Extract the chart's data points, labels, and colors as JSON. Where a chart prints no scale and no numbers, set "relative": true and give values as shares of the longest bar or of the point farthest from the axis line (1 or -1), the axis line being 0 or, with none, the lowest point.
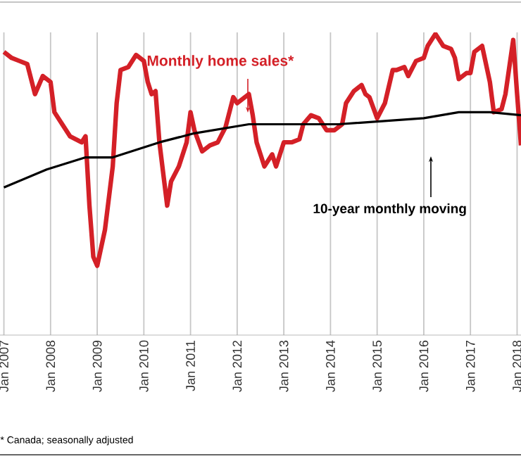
{
  "chart_data": {
    "type": "line",
    "relative": true,
    "grid": "x",
    "tick_labels": "x",
    "line_style": "solid",
    "marker": "none",
    "xlim": [
      "2006-12",
      "2018-02"
    ],
    "xticks": [
      {
        "value": "2007-01",
        "label": "Jan 2007"
      },
      {
        "value": "2008-01",
        "label": "Jan 2008"
      },
      {
        "value": "2009-01",
        "label": "Jan 2009"
      },
      {
        "value": "2010-01",
        "label": "Jan 2010"
      },
      {
        "value": "2011-01",
        "label": "Jan 2011"
      },
      {
        "value": "2012-01",
        "label": "Jan 2012"
      },
      {
        "value": "2013-01",
        "label": "Jan 2013"
      },
      {
        "value": "2014-01",
        "label": "Jan 2014"
      },
      {
        "value": "2015-01",
        "label": "Jan 2015"
      },
      {
        "value": "2016-01",
        "label": "Jan 2016"
      },
      {
        "value": "2017-01",
        "label": "Jan 2017"
      },
      {
        "value": "2018-01",
        "label": "Jan 2018"
      }
    ],
    "series": [
      {
        "name": "Monthly home sales*",
        "color": "#d42027",
        "x": [
          "2007-01",
          "2007-03",
          "2007-05",
          "2007-07",
          "2007-09",
          "2007-11",
          "2008-01",
          "2008-02",
          "2008-04",
          "2008-06",
          "2008-09",
          "2008-10",
          "2008-11",
          "2008-12",
          "2009-01",
          "2009-03",
          "2009-05",
          "2009-06",
          "2009-07",
          "2009-09",
          "2009-10",
          "2009-11",
          "2010-01",
          "2010-02",
          "2010-03",
          "2010-04",
          "2010-05",
          "2010-07",
          "2010-08",
          "2010-10",
          "2010-12",
          "2011-01",
          "2011-02",
          "2011-04",
          "2011-06",
          "2011-08",
          "2011-10",
          "2011-12",
          "2012-01",
          "2012-04",
          "2012-05",
          "2012-06",
          "2012-08",
          "2012-10",
          "2012-11",
          "2013-01",
          "2013-03",
          "2013-05",
          "2013-06",
          "2013-08",
          "2013-10",
          "2013-12",
          "2014-02",
          "2014-04",
          "2014-05",
          "2014-07",
          "2014-09",
          "2014-10",
          "2014-11",
          "2015-01",
          "2015-03",
          "2015-05",
          "2015-06",
          "2015-08",
          "2015-09",
          "2015-11",
          "2016-01",
          "2016-02",
          "2016-04",
          "2016-06",
          "2016-08",
          "2016-09",
          "2016-10",
          "2016-12",
          "2017-01",
          "2017-02",
          "2017-04",
          "2017-06",
          "2017-07",
          "2017-09",
          "2017-10",
          "2017-12",
          "2018-01",
          "2018-02"
        ],
        "values": [
          0.94,
          0.92,
          0.91,
          0.9,
          0.8,
          0.86,
          0.84,
          0.74,
          0.7,
          0.66,
          0.64,
          0.66,
          0.43,
          0.26,
          0.23,
          0.35,
          0.56,
          0.77,
          0.88,
          0.89,
          0.91,
          0.93,
          0.91,
          0.84,
          0.8,
          0.81,
          0.64,
          0.43,
          0.51,
          0.56,
          0.64,
          0.74,
          0.68,
          0.61,
          0.63,
          0.64,
          0.69,
          0.79,
          0.77,
          0.8,
          0.73,
          0.64,
          0.56,
          0.6,
          0.56,
          0.64,
          0.64,
          0.65,
          0.7,
          0.73,
          0.72,
          0.68,
          0.68,
          0.7,
          0.77,
          0.81,
          0.83,
          0.8,
          0.79,
          0.72,
          0.77,
          0.88,
          0.88,
          0.89,
          0.86,
          0.91,
          0.92,
          0.96,
          1.0,
          0.96,
          0.95,
          0.92,
          0.85,
          0.87,
          0.87,
          0.94,
          0.96,
          0.84,
          0.74,
          0.75,
          0.8,
          0.98,
          0.8,
          0.63
        ]
      },
      {
        "name": "10-year monthly moving",
        "color": "#000000",
        "x": [
          "2007-01",
          "2007-12",
          "2008-10",
          "2009-05",
          "2010-05",
          "2011-02",
          "2012-04",
          "2014-03",
          "2016-01",
          "2016-10",
          "2017-06",
          "2018-02"
        ],
        "values": [
          0.49,
          0.55,
          0.59,
          0.59,
          0.64,
          0.67,
          0.7,
          0.7,
          0.72,
          0.74,
          0.74,
          0.73
        ]
      }
    ],
    "annotations": [
      "* Canada; seasonally adjusted"
    ]
  }
}
